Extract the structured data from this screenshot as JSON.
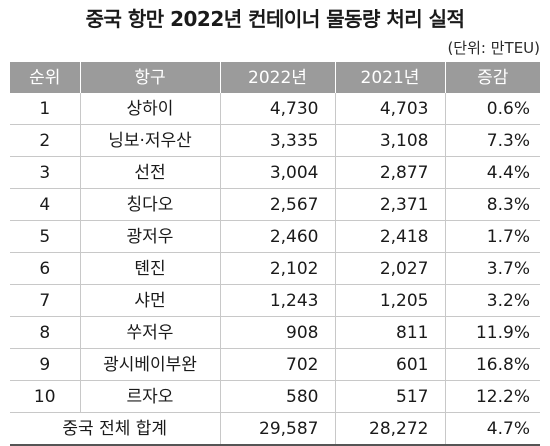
{
  "title": "중국 항만 2022년 컨테이너 물동량 처리 실적",
  "unit": "(단위: 만TEU)",
  "headers": [
    "순위",
    "항구",
    "2022년",
    "2021년",
    "증감"
  ],
  "rows": [
    {
      "rank": "1",
      "port": "상하이",
      "y2022": "4,730",
      "y2021": "4,703",
      "change": "0.6%"
    },
    {
      "rank": "2",
      "port": "닝보·저우산",
      "y2022": "3,335",
      "y2021": "3,108",
      "change": "7.3%"
    },
    {
      "rank": "3",
      "port": "선전",
      "y2022": "3,004",
      "y2021": "2,877",
      "change": "4.4%"
    },
    {
      "rank": "4",
      "port": "칭다오",
      "y2022": "2,567",
      "y2021": "2,371",
      "change": "8.3%"
    },
    {
      "rank": "5",
      "port": "광저우",
      "y2022": "2,460",
      "y2021": "2,418",
      "change": "1.7%"
    },
    {
      "rank": "6",
      "port": "톈진",
      "y2022": "2,102",
      "y2021": "2,027",
      "change": "3.7%"
    },
    {
      "rank": "7",
      "port": "샤먼",
      "y2022": "1,243",
      "y2021": "1,205",
      "change": "3.2%"
    },
    {
      "rank": "8",
      "port": "쑤저우",
      "y2022": "908",
      "y2021": "811",
      "change": "11.9%"
    },
    {
      "rank": "9",
      "port": "광시베이부완",
      "y2022": "702",
      "y2021": "601",
      "change": "16.8%"
    },
    {
      "rank": "10",
      "port": "르자오",
      "y2022": "580",
      "y2021": "517",
      "change": "12.2%"
    }
  ],
  "total": {
    "label": "중국 전체 합계",
    "y2022": "29,587",
    "y2021": "28,272",
    "change": "4.7%"
  },
  "colors": {
    "header_bg": "#9b9b9b",
    "header_text": "#ffffff",
    "grid": "#c8c8c8",
    "text": "#1a1a1a"
  }
}
